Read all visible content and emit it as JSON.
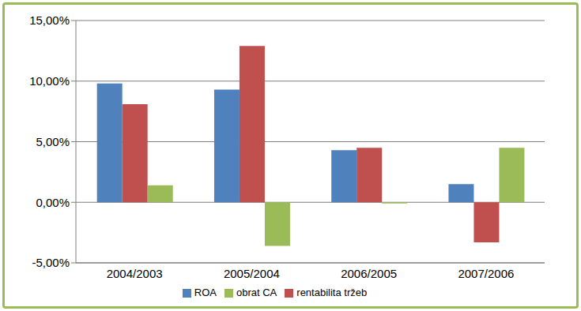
{
  "chart_data": {
    "type": "bar",
    "categories": [
      "2004/2003",
      "2005/2004",
      "2006/2005",
      "2007/2006"
    ],
    "series": [
      {
        "name": "ROA",
        "color": "#4f81bd",
        "values": [
          9.8,
          9.3,
          4.3,
          1.5
        ]
      },
      {
        "name": "rentabilita tržeb",
        "color": "#c0504d",
        "values": [
          8.1,
          12.9,
          4.5,
          -3.3
        ]
      },
      {
        "name": "obrat CA",
        "color": "#9bbb59",
        "values": [
          1.4,
          -3.6,
          -0.1,
          4.5
        ]
      }
    ],
    "ylim": [
      -5,
      15
    ],
    "yticks": [
      {
        "value": -5,
        "label": "-5,00%"
      },
      {
        "value": 0,
        "label": "0,00%"
      },
      {
        "value": 5,
        "label": "5,00%"
      },
      {
        "value": 10,
        "label": "10,00%"
      },
      {
        "value": 15,
        "label": "15,00%"
      }
    ],
    "grid": true,
    "legend": "bottom"
  }
}
